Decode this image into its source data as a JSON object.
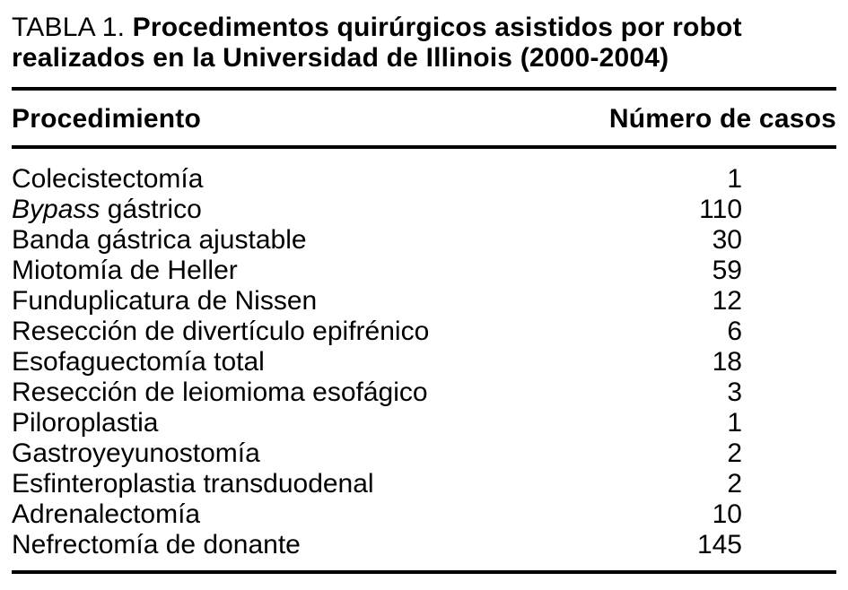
{
  "table": {
    "label": "TABLA 1.",
    "title_bold": "Procedimentos quirúrgicos asistidos por robot realizados en la Universidad de Illinois (2000-2004)",
    "columns": {
      "procedure": "Procedimiento",
      "cases": "Número de casos"
    },
    "rows": [
      {
        "procedure": "Colecistectomía",
        "cases": "1"
      },
      {
        "procedure_italic": "Bypass",
        "procedure_rest": " gástrico",
        "cases": "110"
      },
      {
        "procedure": "Banda gástrica ajustable",
        "cases": "30"
      },
      {
        "procedure": "Miotomía de Heller",
        "cases": "59"
      },
      {
        "procedure": "Funduplicatura de Nissen",
        "cases": "12"
      },
      {
        "procedure": "Resección de divertículo epifrénico",
        "cases": "6"
      },
      {
        "procedure": "Esofaguectomía total",
        "cases": "18"
      },
      {
        "procedure": "Resección de leiomioma esofágico",
        "cases": "3"
      },
      {
        "procedure": "Piloroplastia",
        "cases": "1"
      },
      {
        "procedure": "Gastroyeyunostomía",
        "cases": "2"
      },
      {
        "procedure": "Esfinteroplastia transduodenal",
        "cases": "2"
      },
      {
        "procedure": "Adrenalectomía",
        "cases": "10"
      },
      {
        "procedure": "Nefrectomía de donante",
        "cases": "145"
      }
    ],
    "colors": {
      "text": "#000000",
      "background": "#ffffff",
      "rule": "#000000"
    }
  }
}
